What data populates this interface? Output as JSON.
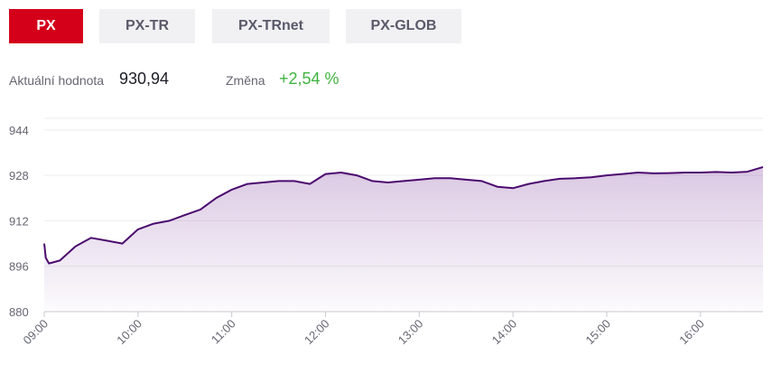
{
  "tabs": [
    {
      "label": "PX",
      "active": true
    },
    {
      "label": "PX-TR",
      "active": false
    },
    {
      "label": "PX-TRnet",
      "active": false
    },
    {
      "label": "PX-GLOB",
      "active": false
    }
  ],
  "stats": {
    "current_label": "Aktuální hodnota",
    "current_value": "930,94",
    "change_label": "Změna",
    "change_value": "+2,54 %"
  },
  "colors": {
    "accent": "#d4001a",
    "line": "#4b0a6e",
    "area": "#7d3c9b",
    "positive": "#3fb33f"
  },
  "chart_data": {
    "type": "area",
    "title": "",
    "xlabel": "",
    "ylabel": "",
    "ylim": [
      880,
      950
    ],
    "yticks": [
      944,
      928,
      912,
      896,
      880
    ],
    "xticks": [
      "09:00",
      "10:00",
      "11:00",
      "12:00",
      "13:00",
      "14:00",
      "15:00",
      "16:00"
    ],
    "xlim": [
      "09:00",
      "16:40"
    ],
    "grid": true,
    "legend": "none",
    "series": [
      {
        "x": [
          "09:00",
          "09:01",
          "09:03",
          "09:10",
          "09:20",
          "09:30",
          "09:40",
          "09:50",
          "10:00",
          "10:10",
          "10:20",
          "10:30",
          "10:40",
          "10:50",
          "11:00",
          "11:10",
          "11:20",
          "11:30",
          "11:40",
          "11:50",
          "12:00",
          "12:10",
          "12:20",
          "12:30",
          "12:40",
          "12:50",
          "13:00",
          "13:10",
          "13:20",
          "13:30",
          "13:40",
          "13:50",
          "14:00",
          "14:10",
          "14:20",
          "14:30",
          "14:40",
          "14:50",
          "15:00",
          "15:10",
          "15:20",
          "15:30",
          "15:40",
          "15:50",
          "16:00",
          "16:10",
          "16:20",
          "16:30",
          "16:40"
        ],
        "values": [
          904,
          899,
          897,
          898,
          903,
          906,
          905,
          904,
          909,
          911,
          912,
          914,
          916,
          920,
          923,
          925,
          925.5,
          926,
          926,
          925,
          928.5,
          929,
          928,
          926,
          925.5,
          926,
          926.5,
          927,
          927,
          926.5,
          926,
          924,
          923.5,
          925,
          926,
          926.8,
          927,
          927.3,
          928,
          928.5,
          929,
          928.7,
          928.8,
          929,
          929,
          929.2,
          929,
          929.3,
          930.94
        ]
      }
    ]
  }
}
